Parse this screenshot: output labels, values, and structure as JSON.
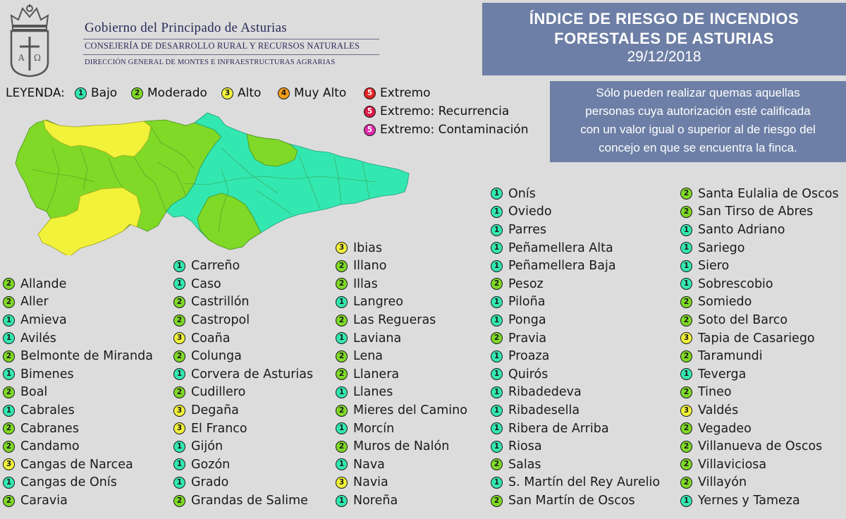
{
  "header": {
    "gov_title": "Gobierno del Principado de Asturias",
    "gov_sub1": "CONSEJERÍA DE DESARROLLO RURAL Y RECURSOS NATURALES",
    "gov_sub2": "DIRECCIÓN GENERAL DE MONTES E INFRAESTRUCTURAS AGRARIAS",
    "crest_icon": "asturias-crest-icon"
  },
  "title": {
    "line1": "ÍNDICE DE RIESGO DE INCENDIOS",
    "line2": "FORESTALES DE ASTURIAS",
    "date": "29/12/2018"
  },
  "note": {
    "lines": [
      "Sólo pueden realizar quemas aquellas",
      "personas cuya autorización esté calificada",
      "con un valor igual o superior al de riesgo del",
      "concejo en que se encuentra la finca."
    ]
  },
  "legend": {
    "title": "LEYENDA:",
    "items": [
      {
        "num": "1",
        "label": "Bajo",
        "color": "#33e8b0"
      },
      {
        "num": "2",
        "label": "Moderado",
        "color": "#7fd926"
      },
      {
        "num": "3",
        "label": "Alto",
        "color": "#f2f23a"
      },
      {
        "num": "4",
        "label": "Muy Alto",
        "color": "#f59a1a"
      },
      {
        "num": "5",
        "label": "Extremo",
        "color": "#e02222"
      },
      {
        "num": "5",
        "label": "Extremo: Recurrencia",
        "color": "#d81b45"
      },
      {
        "num": "5",
        "label": "Extremo: Contaminación",
        "color": "#e02aa8"
      }
    ]
  },
  "colors": {
    "1": "#33e8b0",
    "2": "#7fd926",
    "3": "#f2f23a"
  },
  "concejos": [
    [
      {
        "level": "2",
        "name": "Allande"
      },
      {
        "level": "2",
        "name": "Aller"
      },
      {
        "level": "1",
        "name": "Amieva"
      },
      {
        "level": "1",
        "name": "Avilés"
      },
      {
        "level": "2",
        "name": "Belmonte de Miranda"
      },
      {
        "level": "1",
        "name": "Bimenes"
      },
      {
        "level": "2",
        "name": "Boal"
      },
      {
        "level": "1",
        "name": "Cabrales"
      },
      {
        "level": "2",
        "name": "Cabranes"
      },
      {
        "level": "2",
        "name": "Candamo"
      },
      {
        "level": "3",
        "name": "Cangas de Narcea"
      },
      {
        "level": "1",
        "name": "Cangas de Onís"
      },
      {
        "level": "2",
        "name": "Caravia"
      }
    ],
    [
      {
        "level": "1",
        "name": "Carreño"
      },
      {
        "level": "1",
        "name": "Caso"
      },
      {
        "level": "2",
        "name": "Castrillón"
      },
      {
        "level": "2",
        "name": "Castropol"
      },
      {
        "level": "3",
        "name": "Coaña"
      },
      {
        "level": "2",
        "name": "Colunga"
      },
      {
        "level": "1",
        "name": "Corvera de Asturias"
      },
      {
        "level": "2",
        "name": "Cudillero"
      },
      {
        "level": "3",
        "name": "Degaña"
      },
      {
        "level": "3",
        "name": "El Franco"
      },
      {
        "level": "1",
        "name": "Gijón"
      },
      {
        "level": "1",
        "name": "Gozón"
      },
      {
        "level": "1",
        "name": "Grado"
      },
      {
        "level": "2",
        "name": "Grandas de Salime"
      }
    ],
    [
      {
        "level": "3",
        "name": "Ibias"
      },
      {
        "level": "2",
        "name": "Illano"
      },
      {
        "level": "2",
        "name": "Illas"
      },
      {
        "level": "1",
        "name": "Langreo"
      },
      {
        "level": "2",
        "name": "Las Regueras"
      },
      {
        "level": "1",
        "name": "Laviana"
      },
      {
        "level": "2",
        "name": "Lena"
      },
      {
        "level": "2",
        "name": "Llanera"
      },
      {
        "level": "1",
        "name": "Llanes"
      },
      {
        "level": "2",
        "name": "Mieres del Camino"
      },
      {
        "level": "1",
        "name": "Morcín"
      },
      {
        "level": "2",
        "name": "Muros de Nalón"
      },
      {
        "level": "1",
        "name": "Nava"
      },
      {
        "level": "3",
        "name": "Navia"
      },
      {
        "level": "1",
        "name": "Noreña"
      }
    ],
    [
      {
        "level": "1",
        "name": "Onís"
      },
      {
        "level": "1",
        "name": "Oviedo"
      },
      {
        "level": "1",
        "name": "Parres"
      },
      {
        "level": "1",
        "name": "Peñamellera Alta"
      },
      {
        "level": "1",
        "name": "Peñamellera Baja"
      },
      {
        "level": "2",
        "name": "Pesoz"
      },
      {
        "level": "1",
        "name": "Piloña"
      },
      {
        "level": "1",
        "name": "Ponga"
      },
      {
        "level": "2",
        "name": "Pravia"
      },
      {
        "level": "1",
        "name": "Proaza"
      },
      {
        "level": "1",
        "name": "Quirós"
      },
      {
        "level": "1",
        "name": "Ribadedeva"
      },
      {
        "level": "1",
        "name": "Ribadesella"
      },
      {
        "level": "1",
        "name": "Ribera de Arriba"
      },
      {
        "level": "1",
        "name": "Riosa"
      },
      {
        "level": "2",
        "name": "Salas"
      },
      {
        "level": "1",
        "name": "S. Martín del Rey Aurelio"
      },
      {
        "level": "2",
        "name": "San Martín de Oscos"
      }
    ],
    [
      {
        "level": "2",
        "name": "Santa Eulalia de Oscos"
      },
      {
        "level": "2",
        "name": "San Tirso de Abres"
      },
      {
        "level": "1",
        "name": "Santo Adriano"
      },
      {
        "level": "1",
        "name": "Sariego"
      },
      {
        "level": "1",
        "name": "Siero"
      },
      {
        "level": "1",
        "name": "Sobrescobio"
      },
      {
        "level": "2",
        "name": "Somiedo"
      },
      {
        "level": "2",
        "name": "Soto del Barco"
      },
      {
        "level": "3",
        "name": "Tapia de Casariego"
      },
      {
        "level": "2",
        "name": "Taramundi"
      },
      {
        "level": "1",
        "name": "Teverga"
      },
      {
        "level": "2",
        "name": "Tineo"
      },
      {
        "level": "3",
        "name": "Valdés"
      },
      {
        "level": "2",
        "name": "Vegadeo"
      },
      {
        "level": "2",
        "name": "Villanueva de Oscos"
      },
      {
        "level": "2",
        "name": "Villaviciosa"
      },
      {
        "level": "2",
        "name": "Villayón"
      },
      {
        "level": "1",
        "name": "Yernes y Tameza"
      }
    ]
  ]
}
